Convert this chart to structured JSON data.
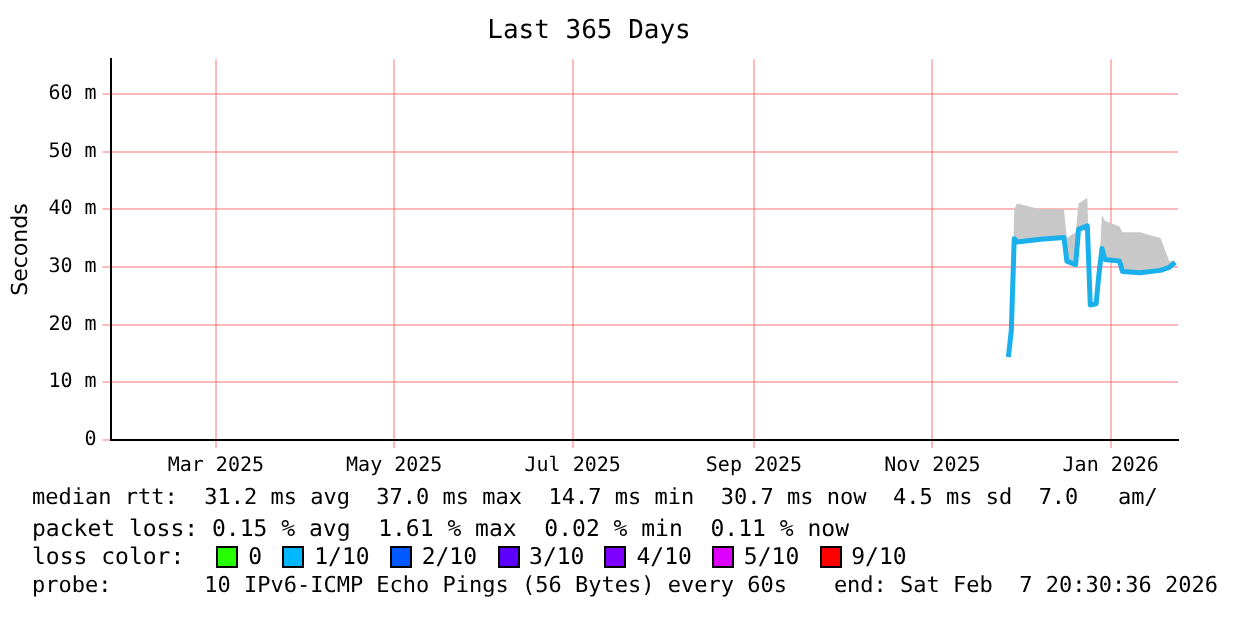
{
  "chart_data": {
    "type": "line",
    "title": "Last 365 Days",
    "ylabel": "Seconds",
    "x": [
      "2025-12-11",
      "2025-12-12",
      "2025-12-13",
      "2025-12-14",
      "2025-12-22",
      "2025-12-30",
      "2025-12-31",
      "2026-01-03",
      "2026-01-04",
      "2026-01-07",
      "2026-01-08",
      "2026-01-10",
      "2026-01-11",
      "2026-01-12",
      "2026-01-13",
      "2026-01-18",
      "2026-01-19",
      "2026-01-25",
      "2026-02-01",
      "2026-02-04",
      "2026-02-06"
    ],
    "series": [
      {
        "color": "#1ab0ec",
        "values": [
          14.4,
          19,
          34.9,
          34.3,
          34.8,
          35.1,
          31,
          30.4,
          36.5,
          37.1,
          23.4,
          23.6,
          28.9,
          33.2,
          31.3,
          31,
          29.2,
          29,
          29.4,
          29.9,
          30.8
        ],
        "lower": [
          14.4,
          19,
          34.9,
          34.3,
          34.8,
          35.1,
          31,
          30.4,
          36.5,
          37.1,
          23.4,
          23.6,
          28.9,
          33.2,
          31.3,
          31,
          29.2,
          29,
          29.4,
          29.9,
          30.8
        ],
        "upper": [
          14.4,
          19,
          40,
          41,
          40,
          40,
          35,
          36,
          41,
          42,
          24,
          24,
          30,
          39,
          38,
          37,
          36,
          36,
          35,
          31,
          31
        ]
      }
    ],
    "xlim": [
      "2025-02-07",
      "2026-02-07"
    ],
    "xticks": [
      {
        "value": "2025-03-15",
        "label": "Mar 2025"
      },
      {
        "value": "2025-05-15",
        "label": "May 2025"
      },
      {
        "value": "2025-07-15",
        "label": "Jul 2025"
      },
      {
        "value": "2025-09-15",
        "label": "Sep 2025"
      },
      {
        "value": "2025-11-15",
        "label": "Nov 2025"
      },
      {
        "value": "2026-01-15",
        "label": "Jan 2026"
      }
    ],
    "ylim": [
      0,
      66
    ],
    "yticks": [
      {
        "value": 0,
        "label": "0"
      },
      {
        "value": 10,
        "label": "10 m"
      },
      {
        "value": 20,
        "label": "20 m"
      },
      {
        "value": 30,
        "label": "30 m"
      },
      {
        "value": 40,
        "label": "40 m"
      },
      {
        "value": 50,
        "label": "50 m"
      },
      {
        "value": 60,
        "label": "60 m"
      }
    ],
    "grid": true,
    "legend": false,
    "marker": "none",
    "line_style": "solid",
    "annotations": [
      "median rtt:  31.2 ms avg  37.0 ms max  14.7 ms min  30.7 ms now  4.5 ms sd  7.0   am/",
      "packet loss: 0.15 % avg  1.61 % max  0.02 % min  0.11 % now",
      "loss color:",
      "0",
      "1/10",
      "2/10",
      "3/10",
      "4/10",
      "5/10",
      "9/10",
      "probe:       10 IPv6-ICMP Echo Pings (56 Bytes) every 60s",
      "end: Sat Feb  7 20:30:36 2026"
    ]
  }
}
